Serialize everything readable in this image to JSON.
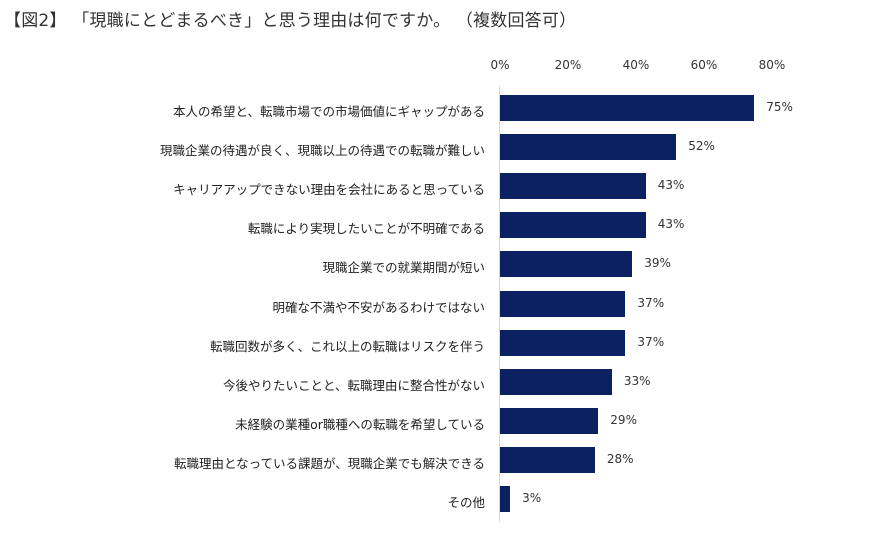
{
  "title": "【図2】 「現職にとどまるべき」と思う理由は何ですか。 （複数回答可）",
  "axis": {
    "ticks": [
      "0%",
      "20%",
      "40%",
      "60%",
      "80%"
    ]
  },
  "colors": {
    "bar": "#0b2161",
    "axis_line": "#d9d9d9"
  },
  "chart_data": {
    "type": "bar",
    "orientation": "horizontal",
    "title": "【図2】 「現職にとどまるべき」と思う理由は何ですか。 （複数回答可）",
    "xlabel": "",
    "ylabel": "",
    "xlim": [
      0,
      80
    ],
    "x_ticks": [
      "0%",
      "20%",
      "40%",
      "60%",
      "80%"
    ],
    "grid": false,
    "legend": null,
    "categories": [
      "本人の希望と、転職市場での市場価値にギャップがある",
      "現職企業の待遇が良く、現職以上の待遇での転職が難しい",
      "キャリアアップできない理由を会社にあると思っている",
      "転職により実現したいことが不明確である",
      "現職企業での就業期間が短い",
      "明確な不満や不安があるわけではない",
      "転職回数が多く、これ以上の転職はリスクを伴う",
      "今後やりたいことと、転職理由に整合性がない",
      "未経験の業種or職種への転職を希望している",
      "転職理由となっている課題が、現職企業でも解決できる",
      "その他"
    ],
    "values": [
      75,
      52,
      43,
      43,
      39,
      37,
      37,
      33,
      29,
      28,
      3
    ],
    "value_labels": [
      "75%",
      "52%",
      "43%",
      "43%",
      "39%",
      "37%",
      "37%",
      "33%",
      "29%",
      "28%",
      "3%"
    ]
  },
  "rows": [
    {
      "label": "本人の希望と、転職市場での市場価値にギャップがある",
      "value": 75,
      "value_label": "75%"
    },
    {
      "label": "現職企業の待遇が良く、現職以上の待遇での転職が難しい",
      "value": 52,
      "value_label": "52%"
    },
    {
      "label": "キャリアアップできない理由を会社にあると思っている",
      "value": 43,
      "value_label": "43%"
    },
    {
      "label": "転職により実現したいことが不明確である",
      "value": 43,
      "value_label": "43%"
    },
    {
      "label": "現職企業での就業期間が短い",
      "value": 39,
      "value_label": "39%"
    },
    {
      "label": "明確な不満や不安があるわけではない",
      "value": 37,
      "value_label": "37%"
    },
    {
      "label": "転職回数が多く、これ以上の転職はリスクを伴う",
      "value": 37,
      "value_label": "37%"
    },
    {
      "label": "今後やりたいことと、転職理由に整合性がない",
      "value": 33,
      "value_label": "33%"
    },
    {
      "label": "未経験の業種or職種への転職を希望している",
      "value": 29,
      "value_label": "29%"
    },
    {
      "label": "転職理由となっている課題が、現職企業でも解決できる",
      "value": 28,
      "value_label": "28%"
    },
    {
      "label": "その他",
      "value": 3,
      "value_label": "3%"
    }
  ]
}
